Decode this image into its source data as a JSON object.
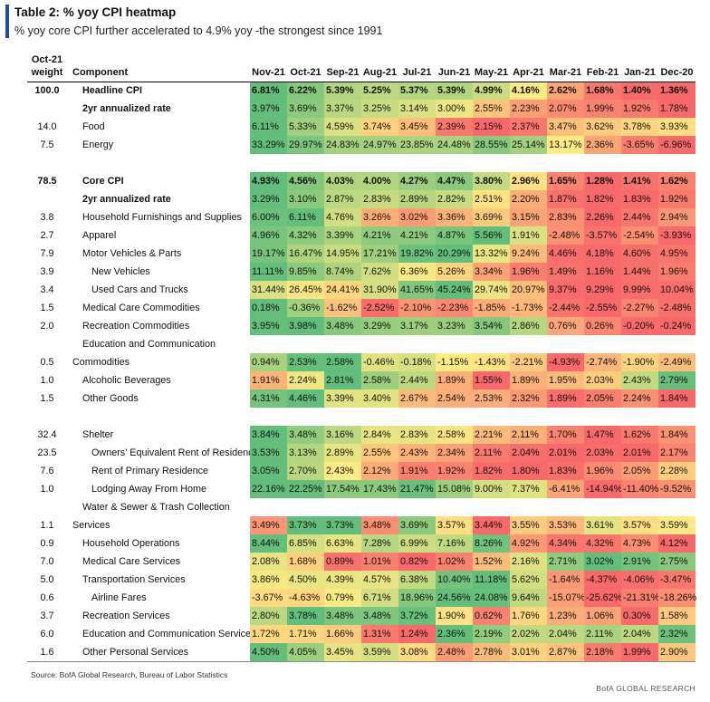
{
  "title": "Table 2: % yoy CPI heatmap",
  "subtitle": "% yoy core CPI further accelerated to 4.9% yoy -the strongest since 1991",
  "header": {
    "weight_line1": "Oct-21",
    "weight_line2": "weight",
    "component": "Component",
    "months": [
      "Nov-21",
      "Oct-21",
      "Sep-21",
      "Aug-21",
      "Jul-21",
      "Jun-21",
      "May-21",
      "Apr-21",
      "Mar-21",
      "Feb-21",
      "Jan-21",
      "Dec-20"
    ]
  },
  "rows": [
    {
      "weight": "100.0",
      "label": "Headline CPI",
      "bold": true,
      "indent": 1,
      "values": [
        "6.81%",
        "6.22%",
        "5.39%",
        "5.25%",
        "5.37%",
        "5.39%",
        "4.99%",
        "4.16%",
        "2.62%",
        "1.68%",
        "1.40%",
        "1.36%"
      ]
    },
    {
      "weight": "",
      "label": "2yr annualized rate",
      "bold": true,
      "indent": 1,
      "values": [
        "3.97%",
        "3.69%",
        "3.37%",
        "3.25%",
        "3.14%",
        "3.00%",
        "2.55%",
        "2.23%",
        "2.07%",
        "1.99%",
        "1.92%",
        "1.78%"
      ]
    },
    {
      "weight": "14.0",
      "label": "Food",
      "indent": 1,
      "values": [
        "6.11%",
        "5.33%",
        "4.59%",
        "3.74%",
        "3.45%",
        "2.39%",
        "2.15%",
        "2.37%",
        "3.47%",
        "3.62%",
        "3.78%",
        "3.93%"
      ]
    },
    {
      "weight": "7.5",
      "label": "Energy",
      "indent": 1,
      "values": [
        "33.29%",
        "29.97%",
        "24.83%",
        "24.97%",
        "23.85%",
        "24.48%",
        "28.55%",
        "25.14%",
        "13.17%",
        "2.36%",
        "-3.65%",
        "-6.96%"
      ]
    },
    {
      "spacer": true
    },
    {
      "weight": "78.5",
      "label": "Core CPI",
      "bold": true,
      "indent": 1,
      "values": [
        "4.93%",
        "4.56%",
        "4.03%",
        "4.00%",
        "4.27%",
        "4.47%",
        "3.80%",
        "2.96%",
        "1.65%",
        "1.28%",
        "1.41%",
        "1.62%"
      ]
    },
    {
      "weight": "",
      "label": "2yr annualized rate",
      "bold": true,
      "indent": 1,
      "values": [
        "3.29%",
        "3.10%",
        "2.87%",
        "2.83%",
        "2.89%",
        "2.82%",
        "2.51%",
        "2.20%",
        "1.87%",
        "1.82%",
        "1.83%",
        "1.92%"
      ]
    },
    {
      "weight": "3.8",
      "label": "Household Furnishings and Supplies",
      "indent": 1,
      "values": [
        "6.00%",
        "6.11%",
        "4.76%",
        "3.26%",
        "3.02%",
        "3.36%",
        "3.69%",
        "3.15%",
        "2.83%",
        "2.26%",
        "2.44%",
        "2.94%"
      ]
    },
    {
      "weight": "2.7",
      "label": "Apparel",
      "indent": 1,
      "values": [
        "4.96%",
        "4.32%",
        "3.39%",
        "4.21%",
        "4.21%",
        "4.87%",
        "5.56%",
        "1.91%",
        "-2.48%",
        "-3.57%",
        "-2.54%",
        "-3.93%"
      ]
    },
    {
      "weight": "7.9",
      "label": "Motor Vehicles & Parts",
      "indent": 1,
      "values": [
        "19.17%",
        "16.47%",
        "14.95%",
        "17.21%",
        "19.82%",
        "20.29%",
        "13.32%",
        "9.24%",
        "4.46%",
        "4.18%",
        "4.60%",
        "4.95%"
      ]
    },
    {
      "weight": "3.9",
      "label": "New Vehicles",
      "indent": 2,
      "values": [
        "11.11%",
        "9.85%",
        "8.74%",
        "7.62%",
        "6.36%",
        "5.26%",
        "3.34%",
        "1.96%",
        "1.49%",
        "1.16%",
        "1.44%",
        "1.96%"
      ]
    },
    {
      "weight": "3.4",
      "label": "Used Cars and Trucks",
      "indent": 2,
      "values": [
        "31.44%",
        "26.45%",
        "24.41%",
        "31.90%",
        "41.65%",
        "45.24%",
        "29.74%",
        "20.97%",
        "9.37%",
        "9.29%",
        "9.99%",
        "10.04%"
      ]
    },
    {
      "weight": "1.5",
      "label": "Medical Care Commodities",
      "indent": 1,
      "values": [
        "0.18%",
        "-0.36%",
        "-1.62%",
        "-2.52%",
        "-2.10%",
        "-2.23%",
        "-1.85%",
        "-1.73%",
        "-2.44%",
        "-2.55%",
        "-2.27%",
        "-2.48%"
      ]
    },
    {
      "weight": "2.0",
      "label": "Recreation Commodities",
      "indent": 1,
      "values": [
        "3.95%",
        "3.98%",
        "3.48%",
        "3.29%",
        "3.17%",
        "3.23%",
        "3.54%",
        "2.86%",
        "0.76%",
        "0.26%",
        "-0.20%",
        "-0.24%"
      ]
    },
    {
      "weight": "",
      "label": "Education and Communication",
      "indent": 1,
      "values": []
    },
    {
      "weight": "0.5",
      "label": "Commodities",
      "indent": 0,
      "values": [
        "0.94%",
        "2.53%",
        "2.58%",
        "-0.46%",
        "-0.18%",
        "-1.15%",
        "-1.43%",
        "-2.21%",
        "-4.93%",
        "-2.74%",
        "-1.90%",
        "-2.49%"
      ]
    },
    {
      "weight": "1.0",
      "label": "Alcoholic Beverages",
      "indent": 1,
      "values": [
        "1.91%",
        "2.24%",
        "2.81%",
        "2.58%",
        "2.44%",
        "1.89%",
        "1.55%",
        "1.89%",
        "1.95%",
        "2.03%",
        "2.43%",
        "2.79%"
      ]
    },
    {
      "weight": "1.5",
      "label": "Other Goods",
      "indent": 1,
      "values": [
        "4.31%",
        "4.46%",
        "3.39%",
        "3.40%",
        "2.67%",
        "2.54%",
        "2.53%",
        "2.32%",
        "1.89%",
        "2.05%",
        "2.24%",
        "1.84%"
      ]
    },
    {
      "spacer": true
    },
    {
      "weight": "32.4",
      "label": "Shelter",
      "indent": 1,
      "values": [
        "3.84%",
        "3.48%",
        "3.16%",
        "2.84%",
        "2.83%",
        "2.58%",
        "2.21%",
        "2.11%",
        "1.70%",
        "1.47%",
        "1.62%",
        "1.84%"
      ]
    },
    {
      "weight": "23.5",
      "label": "Owners' Equivalent Rent of Residences",
      "indent": 2,
      "values": [
        "3.53%",
        "3.13%",
        "2.89%",
        "2.55%",
        "2.43%",
        "2.34%",
        "2.11%",
        "2.04%",
        "2.01%",
        "2.03%",
        "2.01%",
        "2.17%"
      ]
    },
    {
      "weight": "7.6",
      "label": "Rent of Primary Residence",
      "indent": 2,
      "values": [
        "3.05%",
        "2.70%",
        "2.43%",
        "2.12%",
        "1.91%",
        "1.92%",
        "1.82%",
        "1.80%",
        "1.83%",
        "1.96%",
        "2.05%",
        "2.28%"
      ]
    },
    {
      "weight": "1.0",
      "label": "Lodging Away From Home",
      "indent": 2,
      "values": [
        "22.16%",
        "22.25%",
        "17.54%",
        "17.43%",
        "21.47%",
        "15.08%",
        "9.00%",
        "7.37%",
        "-6.41%",
        "-14.94%",
        "-11.40%",
        "-9.52%"
      ]
    },
    {
      "weight": "",
      "label": "Water & Sewer & Trash Collection",
      "indent": 1,
      "values": []
    },
    {
      "weight": "1.1",
      "label": "Services",
      "indent": 0,
      "values": [
        "3.49%",
        "3.73%",
        "3.73%",
        "3.48%",
        "3.69%",
        "3.57%",
        "3.44%",
        "3.55%",
        "3.53%",
        "3.61%",
        "3.57%",
        "3.59%"
      ]
    },
    {
      "weight": "0.9",
      "label": "Household Operations",
      "indent": 1,
      "values": [
        "8.44%",
        "6.85%",
        "6.63%",
        "7.28%",
        "6.99%",
        "7.16%",
        "8.26%",
        "4.92%",
        "4.34%",
        "4.32%",
        "4.73%",
        "4.12%"
      ]
    },
    {
      "weight": "7.0",
      "label": "Medical Care Services",
      "indent": 1,
      "values": [
        "2.08%",
        "1.68%",
        "0.89%",
        "1.01%",
        "0.82%",
        "1.02%",
        "1.52%",
        "2.16%",
        "2.71%",
        "3.02%",
        "2.91%",
        "2.75%"
      ]
    },
    {
      "weight": "5.0",
      "label": "Transportation Services",
      "indent": 1,
      "values": [
        "3.86%",
        "4.50%",
        "4.39%",
        "4.57%",
        "6.38%",
        "10.40%",
        "11.18%",
        "5.62%",
        "-1.64%",
        "-4.37%",
        "-4.06%",
        "-3.47%"
      ]
    },
    {
      "weight": "0.6",
      "label": "Airline Fares",
      "indent": 2,
      "values": [
        "-3.67%",
        "-4.63%",
        "0.79%",
        "6.71%",
        "18.96%",
        "24.56%",
        "24.08%",
        "9.64%",
        "-15.07%",
        "-25.62%",
        "-21.31%",
        "-18.26%"
      ]
    },
    {
      "weight": "3.7",
      "label": "Recreation Services",
      "indent": 1,
      "values": [
        "2.80%",
        "3.78%",
        "3.48%",
        "3.48%",
        "3.72%",
        "1.90%",
        "0.62%",
        "1.76%",
        "1.23%",
        "1.06%",
        "0.30%",
        "1.58%"
      ]
    },
    {
      "weight": "6.0",
      "label": "Education and Communication Services",
      "indent": 1,
      "values": [
        "1.72%",
        "1.71%",
        "1.66%",
        "1.31%",
        "1.24%",
        "2.36%",
        "2.19%",
        "2.02%",
        "2.04%",
        "2.11%",
        "2.04%",
        "2.32%"
      ]
    },
    {
      "weight": "1.6",
      "label": "Other Personal Services",
      "indent": 1,
      "values": [
        "4.50%",
        "4.05%",
        "3.45%",
        "3.59%",
        "3.08%",
        "2.48%",
        "2.78%",
        "3.01%",
        "2.87%",
        "2.18%",
        "1.99%",
        "2.90%"
      ]
    }
  ],
  "colors": {
    "high": "#63be7b",
    "mid": "#ffeb84",
    "low": "#f8696b"
  },
  "source": "Source: BofA Global Research, Bureau of Labor Statistics",
  "footer": "BofA GLOBAL RESEARCH"
}
